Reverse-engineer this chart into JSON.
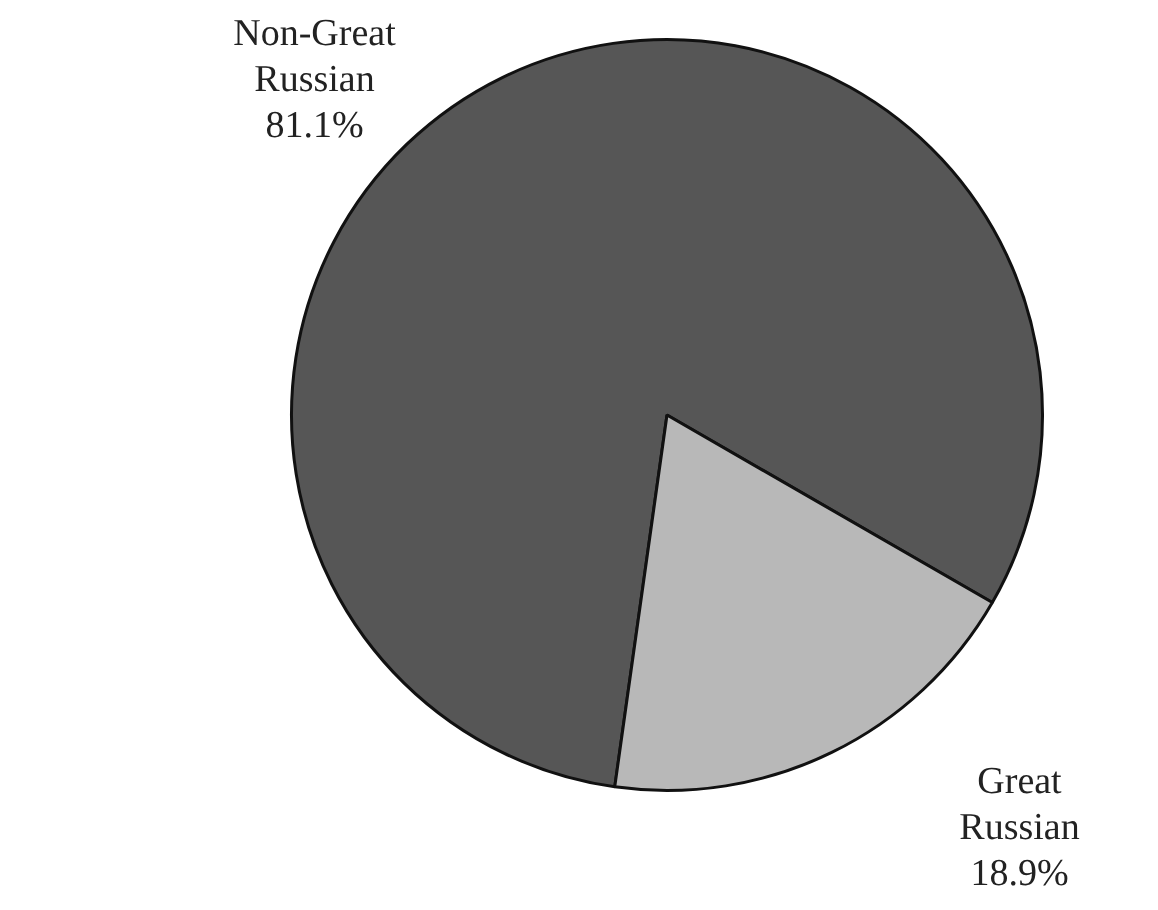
{
  "chart_data": {
    "type": "pie",
    "categories": [
      "Non-Great Russian",
      "Great Russian"
    ],
    "values": [
      81.1,
      18.9
    ],
    "colors": [
      "#565656",
      "#b8b8b8"
    ],
    "value_labels": [
      "81.1%",
      "18.9%"
    ],
    "legend": false
  }
}
